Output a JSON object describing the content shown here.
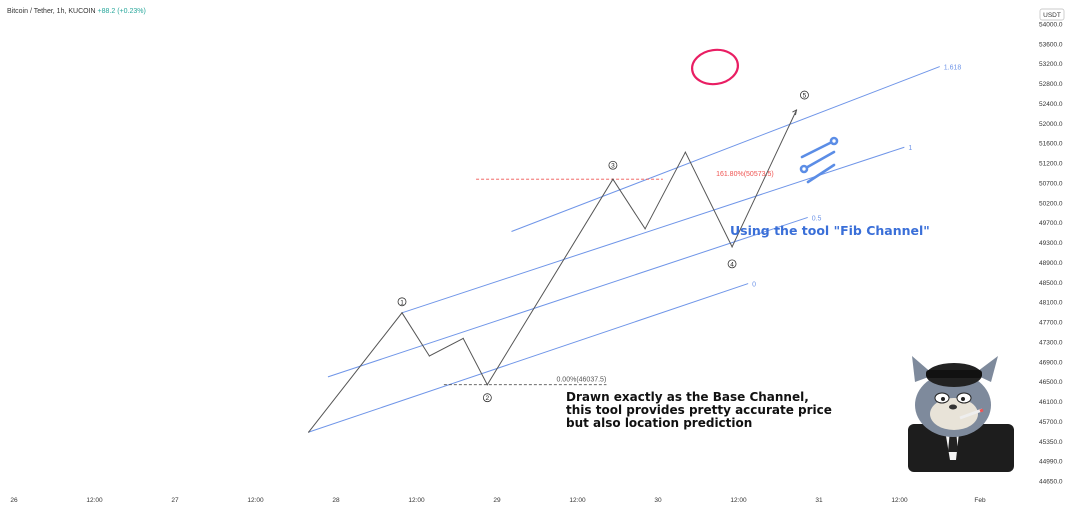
{
  "header": {
    "symbol_line": "Bitcoin / Tether, 1h, KUCOIN",
    "change": "+88.2 (+0.23%)",
    "currency": "USDT"
  },
  "annotations": {
    "tool_note": "Using the tool \"Fib Channel\"",
    "description_lines": [
      "Drawn exactly as the Base Channel,",
      "this tool provides pretty accurate price",
      "but also location prediction"
    ],
    "fib_161": "161.80%(50573.5)",
    "fib_0": "0.00%(46037.5)",
    "channel_labels": [
      "1.618",
      "1",
      "0.5",
      "0"
    ],
    "wave_labels": [
      "①",
      "②",
      "③",
      "④",
      "⑤"
    ]
  },
  "colors": {
    "channel": "#6f95e8",
    "wave": "#555555",
    "fib161": "#ef5350",
    "fibzero": "#555555",
    "circle_highlight": "#e91e63",
    "tool_note": "#3a6fd8"
  },
  "icons": {
    "tool": "fib-channel-tool-icon",
    "cartoon": "cartoon-cat-icon"
  },
  "chart_data": {
    "type": "line",
    "y_ticks": [
      "54000.0",
      "53600.0",
      "53200.0",
      "52800.0",
      "52400.0",
      "52000.0",
      "51600.0",
      "51200.0",
      "50700.0",
      "50200.0",
      "49700.0",
      "49300.0",
      "48900.0",
      "48500.0",
      "48100.0",
      "47700.0",
      "47300.0",
      "46900.0",
      "46500.0",
      "46100.0",
      "45700.0",
      "45350.0",
      "44990.0",
      "44650.0"
    ],
    "x_ticks": [
      "26",
      "12:00",
      "27",
      "12:00",
      "28",
      "12:00",
      "29",
      "12:00",
      "30",
      "12:00",
      "31",
      "12:00",
      "Feb"
    ],
    "ylim": [
      44650,
      54000
    ],
    "grid": false,
    "wave_path": [
      {
        "t": 27.83,
        "price": 44990
      },
      {
        "t": 28.41,
        "price": 47625
      },
      {
        "t": 28.58,
        "price": 46670
      },
      {
        "t": 28.79,
        "price": 47060
      },
      {
        "t": 28.94,
        "price": 46037.5
      },
      {
        "t": 29.72,
        "price": 50573.5
      },
      {
        "t": 29.92,
        "price": 49480
      },
      {
        "t": 30.17,
        "price": 51170
      },
      {
        "t": 30.46,
        "price": 49080
      },
      {
        "t": 30.86,
        "price": 52100
      }
    ],
    "waves": [
      {
        "label": "1",
        "t": 28.41,
        "price": 47625
      },
      {
        "label": "2",
        "t": 28.94,
        "price": 46037.5
      },
      {
        "label": "3",
        "t": 29.72,
        "price": 50573.5
      },
      {
        "label": "4",
        "t": 30.46,
        "price": 49080
      },
      {
        "label": "5",
        "t": 30.86,
        "price": 52100
      }
    ],
    "fib_channel": {
      "levels": [
        {
          "level": "1.618",
          "start": {
            "t": 29.09,
            "price": 49420
          },
          "end": {
            "t": 31.75,
            "price": 53060
          }
        },
        {
          "level": "1",
          "start": {
            "t": 28.41,
            "price": 47625
          },
          "end": {
            "t": 31.53,
            "price": 51280
          }
        },
        {
          "level": "0.5",
          "start": {
            "t": 27.95,
            "price": 46210
          },
          "end": {
            "t": 30.93,
            "price": 49730
          }
        },
        {
          "level": "0",
          "start": {
            "t": 27.83,
            "price": 44990
          },
          "end": {
            "t": 30.56,
            "price": 48270
          }
        }
      ]
    },
    "fib_lines": [
      {
        "label": "161.80%(50573.5)",
        "price": 50573.5,
        "t_start": 28.87,
        "t_end": 30.03,
        "style": "dashed"
      },
      {
        "label": "0.00%(46037.5)",
        "price": 46037.5,
        "t_start": 28.67,
        "t_end": 29.68,
        "style": "dashed"
      }
    ]
  }
}
